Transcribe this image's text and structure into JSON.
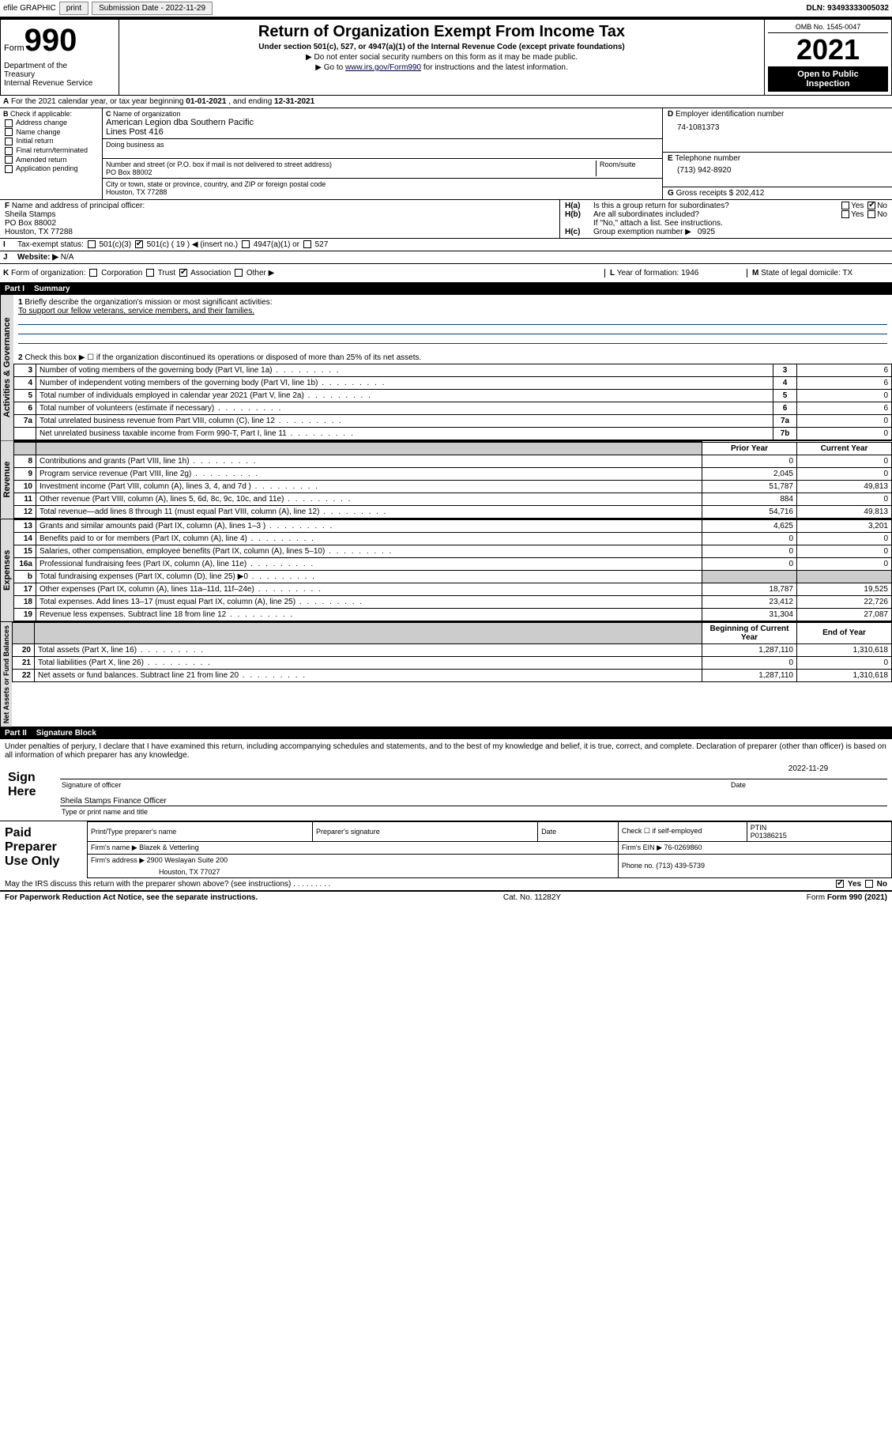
{
  "topbar": {
    "efile": "efile GRAPHIC",
    "print": "print",
    "sub_label": "Submission Date - 2022-11-29",
    "dln_label": "DLN: 93493333005032"
  },
  "header": {
    "form_word": "Form",
    "form_num": "990",
    "title": "Return of Organization Exempt From Income Tax",
    "sub1": "Under section 501(c), 527, or 4947(a)(1) of the Internal Revenue Code (except private foundations)",
    "sub2": "▶ Do not enter social security numbers on this form as it may be made public.",
    "sub3_pre": "▶ Go to ",
    "sub3_link": "www.irs.gov/Form990",
    "sub3_post": " for instructions and the latest information.",
    "omb": "OMB No. 1545-0047",
    "year": "2021",
    "open1": "Open to Public",
    "open2": "Inspection",
    "dept1": "Department of the",
    "dept2": "Treasury",
    "dept3": "Internal Revenue Service"
  },
  "A": {
    "text_pre": "For the 2021 calendar year, or tax year beginning ",
    "begin": "01-01-2021",
    "mid": " , and ending ",
    "end": "12-31-2021"
  },
  "B": {
    "label": "Check if applicable:",
    "items": [
      "Address change",
      "Name change",
      "Initial return",
      "Final return/terminated",
      "Amended return",
      "Application pending"
    ]
  },
  "C": {
    "name_label": "Name of organization",
    "name1": "American Legion dba Southern Pacific",
    "name2": "Lines Post 416",
    "dba_label": "Doing business as",
    "addr_label": "Number and street (or P.O. box if mail is not delivered to street address)",
    "room_label": "Room/suite",
    "addr": "PO Box 88002",
    "city_label": "City or town, state or province, country, and ZIP or foreign postal code",
    "city": "Houston, TX  77288"
  },
  "D": {
    "label": "Employer identification number",
    "value": "74-1081373"
  },
  "E": {
    "label": "Telephone number",
    "value": "(713) 942-8920"
  },
  "G": {
    "label": "Gross receipts $",
    "value": "202,412"
  },
  "F": {
    "label": "Name and address of principal officer:",
    "l1": "Sheila Stamps",
    "l2": "PO Box 88002",
    "l3": "Houston, TX  77288"
  },
  "H": {
    "a": "Is this a group return for subordinates?",
    "b": "Are all subordinates included?",
    "note": "If \"No,\" attach a list. See instructions.",
    "c_label": "Group exemption number ▶",
    "c_val": "0925",
    "yes": "Yes",
    "no": "No"
  },
  "I": {
    "label": "Tax-exempt status:",
    "opts": [
      "501(c)(3)",
      "501(c) ( 19 ) ◀ (insert no.)",
      "4947(a)(1) or",
      "527"
    ]
  },
  "J": {
    "label": "Website: ▶",
    "value": "N/A"
  },
  "K": {
    "label": "Form of organization:",
    "opts": [
      "Corporation",
      "Trust",
      "Association",
      "Other ▶"
    ]
  },
  "L": {
    "label": "Year of formation:",
    "value": "1946"
  },
  "M": {
    "label": "State of legal domicile:",
    "value": "TX"
  },
  "part1": {
    "num": "Part I",
    "title": "Summary"
  },
  "summary": {
    "l1_label": "Briefly describe the organization's mission or most significant activities:",
    "l1_text": "To support our fellow veterans, service members, and their families.",
    "l2": "Check this box ▶ ☐  if the organization discontinued its operations or disposed of more than 25% of its net assets.",
    "side_ag": "Activities & Governance",
    "side_rev": "Revenue",
    "side_exp": "Expenses",
    "side_na": "Net Assets or Fund Balances",
    "col_prior": "Prior Year",
    "col_curr": "Current Year",
    "col_beg": "Beginning of Current Year",
    "col_end": "End of Year",
    "rows_top": [
      {
        "n": "3",
        "d": "Number of voting members of the governing body (Part VI, line 1a)",
        "box": "3",
        "v": "6"
      },
      {
        "n": "4",
        "d": "Number of independent voting members of the governing body (Part VI, line 1b)",
        "box": "4",
        "v": "6"
      },
      {
        "n": "5",
        "d": "Total number of individuals employed in calendar year 2021 (Part V, line 2a)",
        "box": "5",
        "v": "0"
      },
      {
        "n": "6",
        "d": "Total number of volunteers (estimate if necessary)",
        "box": "6",
        "v": "6"
      },
      {
        "n": "7a",
        "d": "Total unrelated business revenue from Part VIII, column (C), line 12",
        "box": "7a",
        "v": "0"
      },
      {
        "n": "",
        "d": "Net unrelated business taxable income from Form 990-T, Part I, line 11",
        "box": "7b",
        "v": "0"
      }
    ],
    "rows_rev": [
      {
        "n": "8",
        "d": "Contributions and grants (Part VIII, line 1h)",
        "p": "0",
        "c": "0"
      },
      {
        "n": "9",
        "d": "Program service revenue (Part VIII, line 2g)",
        "p": "2,045",
        "c": "0"
      },
      {
        "n": "10",
        "d": "Investment income (Part VIII, column (A), lines 3, 4, and 7d )",
        "p": "51,787",
        "c": "49,813"
      },
      {
        "n": "11",
        "d": "Other revenue (Part VIII, column (A), lines 5, 6d, 8c, 9c, 10c, and 11e)",
        "p": "884",
        "c": "0"
      },
      {
        "n": "12",
        "d": "Total revenue—add lines 8 through 11 (must equal Part VIII, column (A), line 12)",
        "p": "54,716",
        "c": "49,813"
      }
    ],
    "rows_exp": [
      {
        "n": "13",
        "d": "Grants and similar amounts paid (Part IX, column (A), lines 1–3 )",
        "p": "4,625",
        "c": "3,201"
      },
      {
        "n": "14",
        "d": "Benefits paid to or for members (Part IX, column (A), line 4)",
        "p": "0",
        "c": "0"
      },
      {
        "n": "15",
        "d": "Salaries, other compensation, employee benefits (Part IX, column (A), lines 5–10)",
        "p": "0",
        "c": "0"
      },
      {
        "n": "16a",
        "d": "Professional fundraising fees (Part IX, column (A), line 11e)",
        "p": "0",
        "c": "0"
      },
      {
        "n": "b",
        "d": "Total fundraising expenses (Part IX, column (D), line 25) ▶0",
        "p": "",
        "c": "",
        "shade": true
      },
      {
        "n": "17",
        "d": "Other expenses (Part IX, column (A), lines 11a–11d, 11f–24e)",
        "p": "18,787",
        "c": "19,525"
      },
      {
        "n": "18",
        "d": "Total expenses. Add lines 13–17 (must equal Part IX, column (A), line 25)",
        "p": "23,412",
        "c": "22,726"
      },
      {
        "n": "19",
        "d": "Revenue less expenses. Subtract line 18 from line 12",
        "p": "31,304",
        "c": "27,087"
      }
    ],
    "rows_na": [
      {
        "n": "20",
        "d": "Total assets (Part X, line 16)",
        "p": "1,287,110",
        "c": "1,310,618"
      },
      {
        "n": "21",
        "d": "Total liabilities (Part X, line 26)",
        "p": "0",
        "c": "0"
      },
      {
        "n": "22",
        "d": "Net assets or fund balances. Subtract line 21 from line 20",
        "p": "1,287,110",
        "c": "1,310,618"
      }
    ]
  },
  "part2": {
    "num": "Part II",
    "title": "Signature Block"
  },
  "sig": {
    "penalties": "Under penalties of perjury, I declare that I have examined this return, including accompanying schedules and statements, and to the best of my knowledge and belief, it is true, correct, and complete. Declaration of preparer (other than officer) is based on all information of which preparer has any knowledge.",
    "sign_here": "Sign Here",
    "sig_officer": "Signature of officer",
    "date": "Date",
    "date_val": "2022-11-29",
    "name_title": "Sheila Stamps Finance Officer",
    "type_label": "Type or print name and title"
  },
  "paid": {
    "title": "Paid Preparer Use Only",
    "h1": "Print/Type preparer's name",
    "h2": "Preparer's signature",
    "h3": "Date",
    "h4_chk": "Check ☐ if self-employed",
    "h5": "PTIN",
    "ptin": "P01386215",
    "firm_name_l": "Firm's name    ▶",
    "firm_name": "Blazek & Vetterling",
    "firm_ein_l": "Firm's EIN ▶",
    "firm_ein": "76-0269860",
    "firm_addr_l": "Firm's address ▶",
    "firm_addr1": "2900 Weslayan Suite 200",
    "firm_addr2": "Houston, TX  77027",
    "phone_l": "Phone no.",
    "phone": "(713) 439-5739"
  },
  "footer": {
    "discuss": "May the IRS discuss this return with the preparer shown above? (see instructions)",
    "paperwork": "For Paperwork Reduction Act Notice, see the separate instructions.",
    "cat": "Cat. No. 11282Y",
    "form": "Form 990 (2021)"
  },
  "colors": {
    "black": "#000000",
    "link": "#003366",
    "shade": "#cccccc",
    "rule": "#004080"
  }
}
